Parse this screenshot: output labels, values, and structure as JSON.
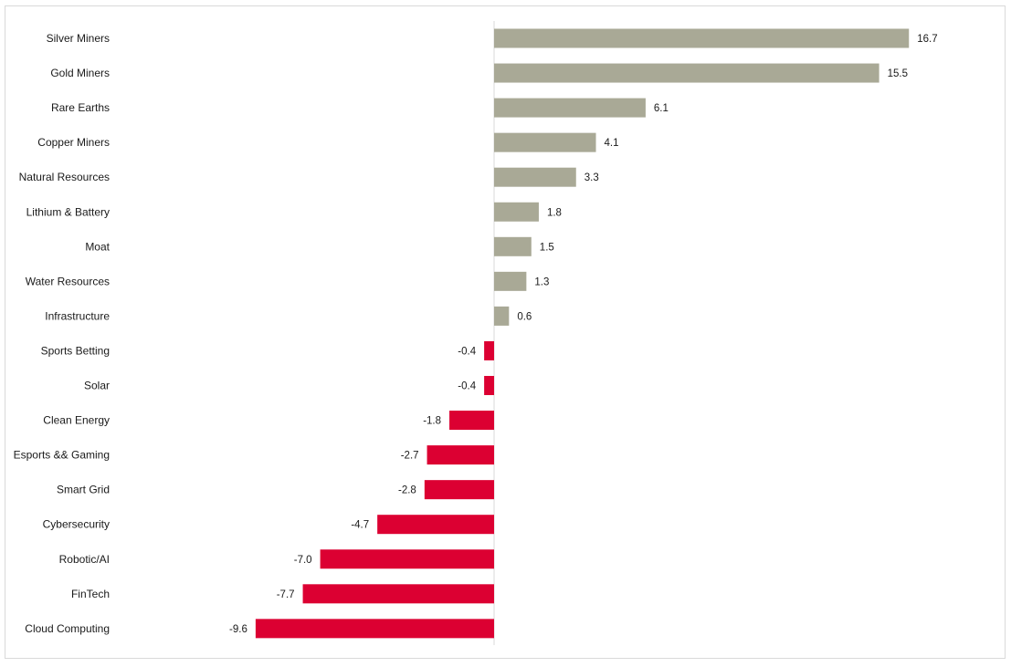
{
  "chart_data": {
    "type": "bar",
    "orientation": "horizontal",
    "title": "",
    "xlabel": "",
    "ylabel": "",
    "grid": false,
    "legend": "none",
    "xlim": [
      -11.0,
      19.5
    ],
    "colors": {
      "positive": "#a9a996",
      "negative": "#dc0032"
    },
    "categories": [
      "Silver Miners",
      "Gold Miners",
      "Rare Earths",
      "Copper Miners",
      "Natural Resources",
      "Lithium & Battery",
      "Moat",
      "Water Resources",
      "Infrastructure",
      "Sports Betting",
      "Solar",
      "Clean Energy",
      "Esports && Gaming",
      "Smart Grid",
      "Cybersecurity",
      "Robotic/AI",
      "FinTech",
      "Cloud Computing"
    ],
    "values": [
      16.7,
      15.5,
      6.1,
      4.1,
      3.3,
      1.8,
      1.5,
      1.3,
      0.6,
      -0.4,
      -0.4,
      -1.8,
      -2.7,
      -2.8,
      -4.7,
      -7.0,
      -7.7,
      -9.6
    ],
    "value_labels": [
      "16.7",
      "15.5",
      "6.1",
      "4.1",
      "3.3",
      "1.8",
      "1.5",
      "1.3",
      "0.6",
      "-0.4",
      "-0.4",
      "-1.8",
      "-2.7",
      "-2.8",
      "-4.7",
      "-7.0",
      "-7.7",
      "-9.6"
    ]
  }
}
